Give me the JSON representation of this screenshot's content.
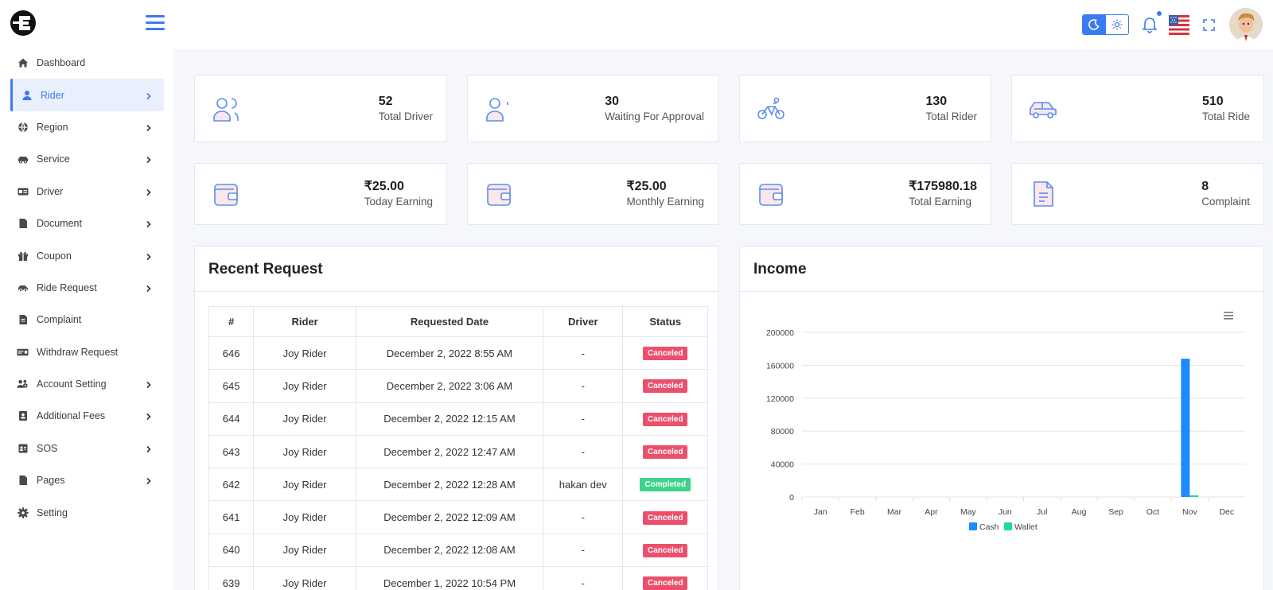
{
  "sidebar": {
    "items": [
      {
        "label": "Dashboard",
        "icon": "home-icon",
        "chevron": false,
        "active": false
      },
      {
        "label": "Rider",
        "icon": "user-icon",
        "chevron": true,
        "active": true
      },
      {
        "label": "Region",
        "icon": "globe-icon",
        "chevron": true,
        "active": false
      },
      {
        "label": "Service",
        "icon": "car-icon",
        "chevron": true,
        "active": false
      },
      {
        "label": "Driver",
        "icon": "id-card-icon",
        "chevron": true,
        "active": false
      },
      {
        "label": "Document",
        "icon": "file-icon",
        "chevron": true,
        "active": false
      },
      {
        "label": "Coupon",
        "icon": "gift-icon",
        "chevron": true,
        "active": false
      },
      {
        "label": "Ride Request",
        "icon": "car-side-icon",
        "chevron": true,
        "active": false
      },
      {
        "label": "Complaint",
        "icon": "file-text-icon",
        "chevron": false,
        "active": false
      },
      {
        "label": "Withdraw Request",
        "icon": "money-check-icon",
        "chevron": false,
        "active": false
      },
      {
        "label": "Account Setting",
        "icon": "users-cog-icon",
        "chevron": true,
        "active": false
      },
      {
        "label": "Additional Fees",
        "icon": "address-book-icon",
        "chevron": true,
        "active": false
      },
      {
        "label": "SOS",
        "icon": "contact-card-icon",
        "chevron": true,
        "active": false
      },
      {
        "label": "Pages",
        "icon": "file-icon",
        "chevron": true,
        "active": false
      },
      {
        "label": "Setting",
        "icon": "gear-icon",
        "chevron": false,
        "active": false
      }
    ]
  },
  "colors": {
    "accent": "#3a7bf0",
    "cash": "#1a8cff",
    "wallet": "#1fd8a0",
    "canceled": "#ec4f6c",
    "completed": "#3fd28d"
  },
  "stats": [
    {
      "value": "52",
      "label": "Total Driver",
      "icon": "drivers-icon"
    },
    {
      "value": "30",
      "label": "Waiting For Approval",
      "icon": "pending-user-icon"
    },
    {
      "value": "130",
      "label": "Total Rider",
      "icon": "bicycle-icon"
    },
    {
      "value": "510",
      "label": "Total Ride",
      "icon": "car-icon"
    },
    {
      "value": "₹25.00",
      "label": "Today Earning",
      "icon": "wallet-icon"
    },
    {
      "value": "₹25.00",
      "label": "Monthly Earning",
      "icon": "wallet-icon"
    },
    {
      "value": "₹175980.18",
      "label": "Total Earning",
      "icon": "wallet-icon"
    },
    {
      "value": "8",
      "label": "Complaint",
      "icon": "document-icon"
    }
  ],
  "recent": {
    "title": "Recent Request",
    "headers": [
      "#",
      "Rider",
      "Requested Date",
      "Driver",
      "Status"
    ],
    "rows": [
      {
        "id": "646",
        "rider": "Joy Rider",
        "date": "December 2, 2022 8:55 AM",
        "driver": "-",
        "status": "Canceled"
      },
      {
        "id": "645",
        "rider": "Joy Rider",
        "date": "December 2, 2022 3:06 AM",
        "driver": "-",
        "status": "Canceled"
      },
      {
        "id": "644",
        "rider": "Joy Rider",
        "date": "December 2, 2022 12:15 AM",
        "driver": "-",
        "status": "Canceled"
      },
      {
        "id": "643",
        "rider": "Joy Rider",
        "date": "December 2, 2022 12:47 AM",
        "driver": "-",
        "status": "Canceled"
      },
      {
        "id": "642",
        "rider": "Joy Rider",
        "date": "December 2, 2022 12:28 AM",
        "driver": "hakan dev",
        "status": "Completed"
      },
      {
        "id": "641",
        "rider": "Joy Rider",
        "date": "December 2, 2022 12:09 AM",
        "driver": "-",
        "status": "Canceled"
      },
      {
        "id": "640",
        "rider": "Joy Rider",
        "date": "December 2, 2022 12:08 AM",
        "driver": "-",
        "status": "Canceled"
      },
      {
        "id": "639",
        "rider": "Joy Rider",
        "date": "December 1, 2022 10:54 PM",
        "driver": "-",
        "status": "Canceled"
      }
    ]
  },
  "income": {
    "title": "Income"
  },
  "chart_data": {
    "type": "bar",
    "categories": [
      "Jan",
      "Feb",
      "Mar",
      "Apr",
      "May",
      "Jun",
      "Jul",
      "Aug",
      "Sep",
      "Oct",
      "Nov",
      "Dec"
    ],
    "series": [
      {
        "name": "Cash",
        "values": [
          0,
          0,
          0,
          0,
          0,
          0,
          0,
          0,
          0,
          0,
          168000,
          0
        ]
      },
      {
        "name": "Wallet",
        "values": [
          0,
          0,
          0,
          0,
          0,
          0,
          0,
          0,
          0,
          0,
          2000,
          0
        ]
      }
    ],
    "yticks": [
      "0",
      "40000",
      "80000",
      "120000",
      "160000",
      "200000"
    ],
    "ylim": [
      0,
      200000
    ],
    "grid": true,
    "legend_position": "bottom"
  }
}
